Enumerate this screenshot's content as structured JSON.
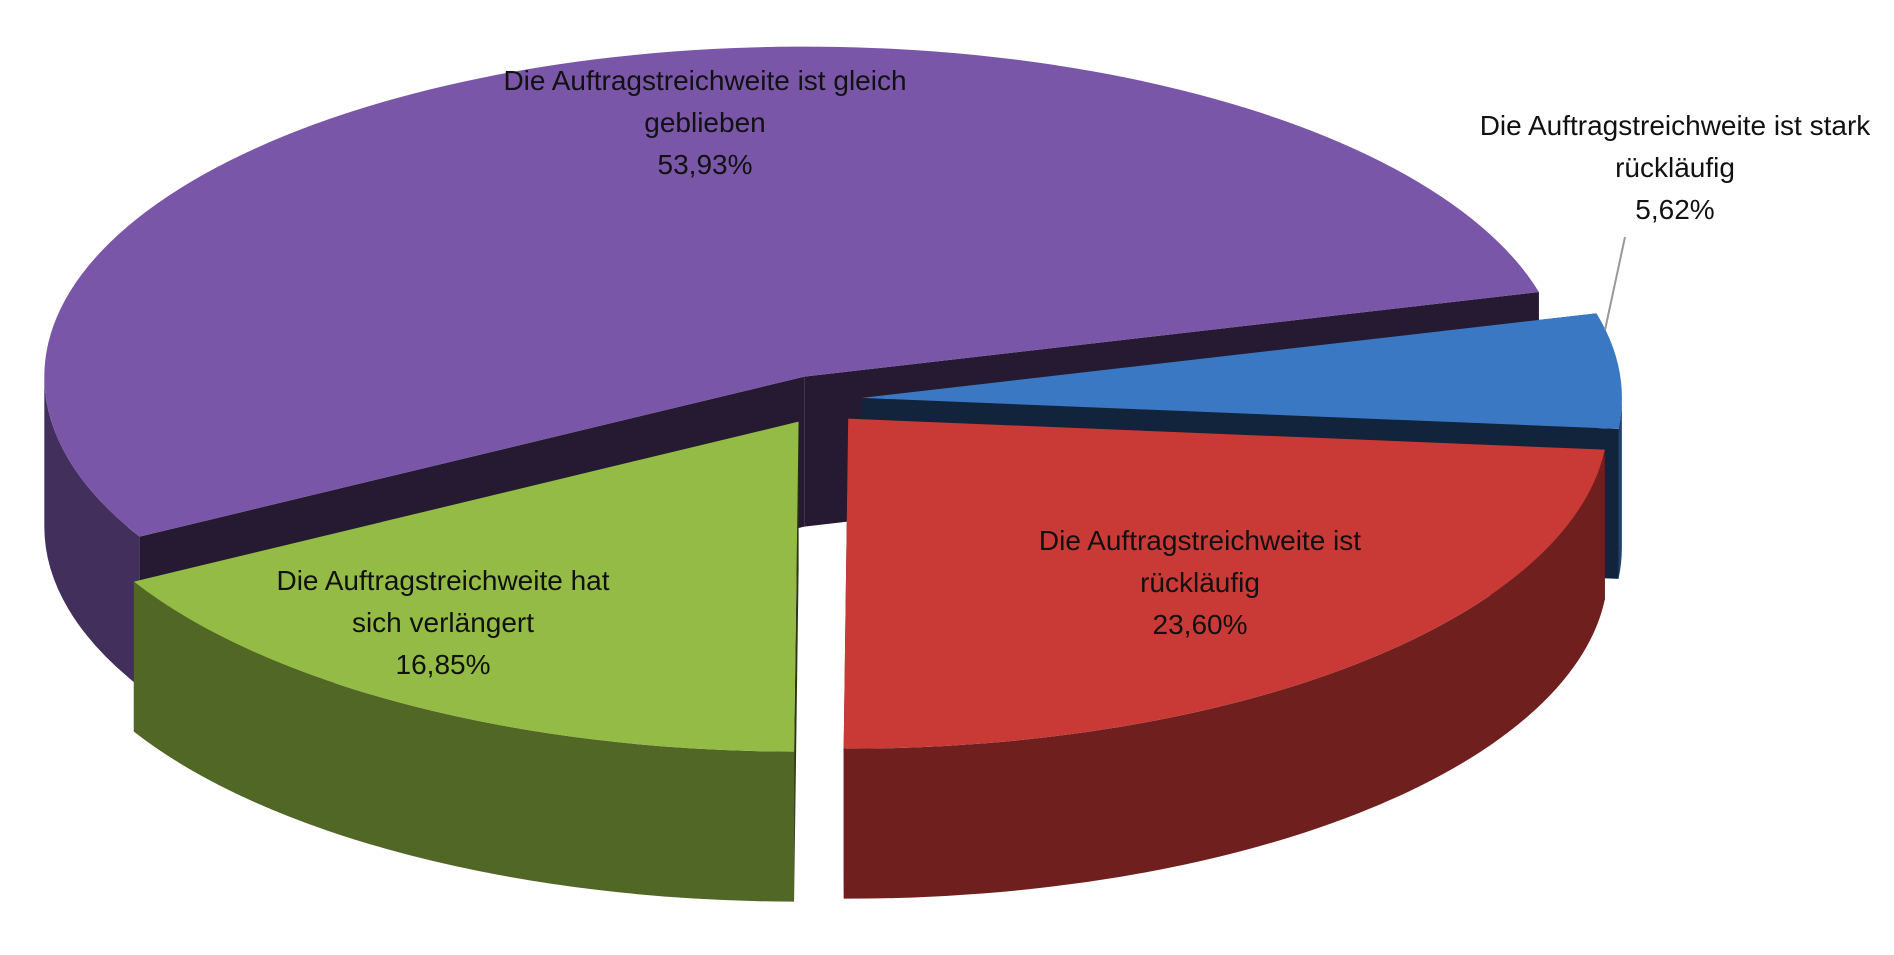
{
  "chart_data": {
    "type": "pie3d",
    "categories": [
      "Die Auftragstreichweite ist gleich geblieben",
      "Die Auftragstreichweite ist stark rückläufig",
      "Die Auftragstreichweite ist rückläufig",
      "Die Auftragstreichweite hat sich verlängert"
    ],
    "values": [
      53.93,
      5.62,
      23.6,
      16.85
    ],
    "value_labels": [
      "53,93%",
      "5,62%",
      "23,60%",
      "16,85%"
    ],
    "colors": [
      "#7a56a8",
      "#3a78c4",
      "#c93a36",
      "#93bb45"
    ]
  }
}
